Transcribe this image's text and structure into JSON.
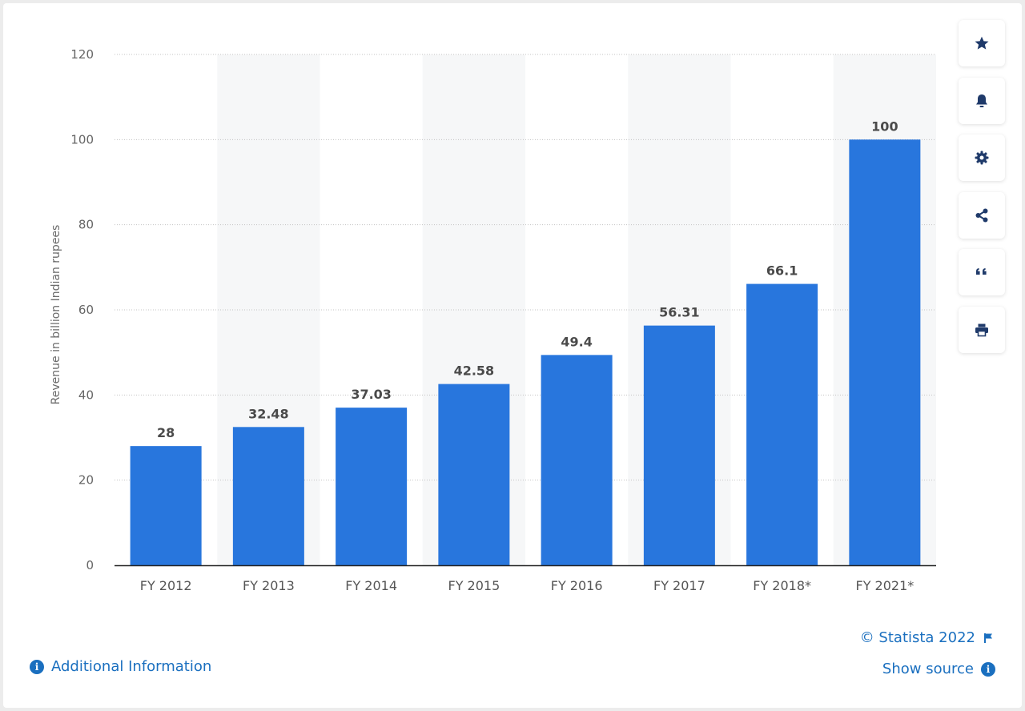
{
  "chart_data": {
    "type": "bar",
    "categories": [
      "FY 2012",
      "FY 2013",
      "FY 2014",
      "FY 2015",
      "FY 2016",
      "FY 2017",
      "FY 2018*",
      "FY 2021*"
    ],
    "values": [
      28,
      32.48,
      37.03,
      42.58,
      49.4,
      56.31,
      66.1,
      100
    ],
    "value_labels": [
      "28",
      "32.48",
      "37.03",
      "42.58",
      "49.4",
      "56.31",
      "66.1",
      "100"
    ],
    "title": "",
    "xlabel": "",
    "ylabel": "Revenue in billion Indian rupees",
    "ylim": [
      0,
      120
    ],
    "yticks": [
      0,
      20,
      40,
      60,
      80,
      100,
      120
    ],
    "grid": true,
    "bar_color": "#2876dd"
  },
  "toolbar": {
    "items": [
      {
        "name": "star-icon",
        "glyph": "★"
      },
      {
        "name": "bell-icon",
        "glyph": "🔔"
      },
      {
        "name": "gear-icon",
        "glyph": "⚙"
      },
      {
        "name": "share-icon",
        "glyph": "⋖"
      },
      {
        "name": "quote-icon",
        "glyph": "❝"
      },
      {
        "name": "print-icon",
        "glyph": "⎙"
      }
    ]
  },
  "footer": {
    "copyright": "© Statista 2022",
    "show_source": "Show source",
    "additional_info": "Additional Information"
  },
  "colors": {
    "accent": "#1a6fbf",
    "bar": "#2876dd",
    "stripe": "#f6f7f8"
  }
}
